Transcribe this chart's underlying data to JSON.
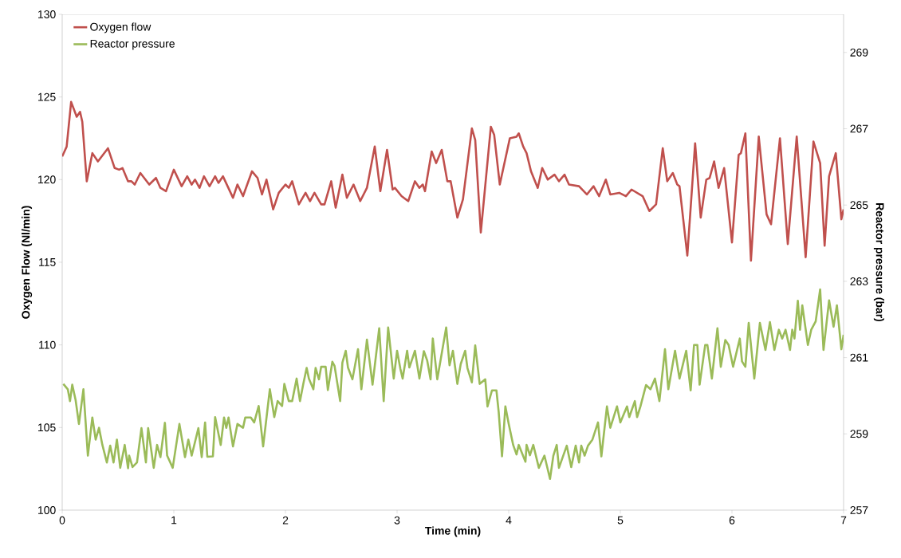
{
  "chart_data": {
    "type": "line",
    "xlabel": "Time (min)",
    "ylabel": "Oxygen Flow (Nl/min)",
    "y2label": "Reactor pressure (bar)",
    "xlim": [
      0,
      7
    ],
    "xticks": [
      0,
      1,
      2,
      3,
      4,
      5,
      6,
      7
    ],
    "ylim": [
      100,
      130
    ],
    "yticks": [
      100,
      105,
      110,
      115,
      120,
      125,
      130
    ],
    "y2lim": [
      257,
      270
    ],
    "y2ticks": [
      257,
      259,
      261,
      263,
      265,
      267,
      269
    ],
    "legend": "top left",
    "grid": false,
    "marker": "none",
    "line_style": "solid",
    "series": [
      {
        "name": "Oxygen flow",
        "color": "#c0504d",
        "x": [
          0,
          0.04,
          0.08,
          0.13,
          0.16,
          0.18,
          0.22,
          0.27,
          0.32,
          0.41,
          0.47,
          0.51,
          0.54,
          0.59,
          0.62,
          0.65,
          0.7,
          0.78,
          0.84,
          0.88,
          0.93,
          1.0,
          1.07,
          1.12,
          1.16,
          1.19,
          1.23,
          1.27,
          1.32,
          1.37,
          1.4,
          1.44,
          1.53,
          1.57,
          1.62,
          1.7,
          1.75,
          1.79,
          1.83,
          1.89,
          1.94,
          2.0,
          2.03,
          2.06,
          2.12,
          2.18,
          2.22,
          2.26,
          2.32,
          2.35,
          2.41,
          2.45,
          2.51,
          2.55,
          2.61,
          2.67,
          2.73,
          2.8,
          2.85,
          2.91,
          2.96,
          2.98,
          3.04,
          3.1,
          3.16,
          3.2,
          3.23,
          3.25,
          3.31,
          3.35,
          3.4,
          3.45,
          3.48,
          3.54,
          3.59,
          3.67,
          3.7,
          3.75,
          3.84,
          3.87,
          3.92,
          4.01,
          4.07,
          4.09,
          4.13,
          4.16,
          4.2,
          4.26,
          4.3,
          4.35,
          4.41,
          4.45,
          4.5,
          4.54,
          4.63,
          4.7,
          4.76,
          4.81,
          4.87,
          4.91,
          4.99,
          5.05,
          5.1,
          5.2,
          5.26,
          5.32,
          5.38,
          5.42,
          5.47,
          5.51,
          5.53,
          5.6,
          5.67,
          5.72,
          5.77,
          5.8,
          5.84,
          5.88,
          5.93,
          6.0,
          6.06,
          6.08,
          6.12,
          6.17,
          6.24,
          6.31,
          6.35,
          6.43,
          6.5,
          6.58,
          6.66,
          6.73,
          6.79,
          6.83,
          6.87,
          6.93,
          6.98,
          7.0
        ],
        "values": [
          121.4,
          122.0,
          124.7,
          123.8,
          124.1,
          123.5,
          119.9,
          121.6,
          121.1,
          121.9,
          120.7,
          120.6,
          120.7,
          119.9,
          119.9,
          119.7,
          120.4,
          119.7,
          120.1,
          119.5,
          119.3,
          120.6,
          119.6,
          120.2,
          119.7,
          120.0,
          119.5,
          120.2,
          119.6,
          120.2,
          119.8,
          120.2,
          118.9,
          119.7,
          119.0,
          120.5,
          120.1,
          119.1,
          120.0,
          118.2,
          119.2,
          119.7,
          119.5,
          119.9,
          118.5,
          119.2,
          118.7,
          119.2,
          118.5,
          118.5,
          119.9,
          118.3,
          120.3,
          118.9,
          119.7,
          118.7,
          119.5,
          122.0,
          119.3,
          121.8,
          119.4,
          119.5,
          119.0,
          118.7,
          119.9,
          119.5,
          119.7,
          119.3,
          121.7,
          121.0,
          121.8,
          119.9,
          119.9,
          117.7,
          118.8,
          123.1,
          122.4,
          116.8,
          123.2,
          122.7,
          119.7,
          122.5,
          122.6,
          122.8,
          122.0,
          121.6,
          120.5,
          119.5,
          120.7,
          120.0,
          120.3,
          119.9,
          120.3,
          119.7,
          119.6,
          119.1,
          119.6,
          119.0,
          120.0,
          119.1,
          119.2,
          119.0,
          119.4,
          119.0,
          118.1,
          118.5,
          121.9,
          119.9,
          120.4,
          119.7,
          119.6,
          115.4,
          122.2,
          117.7,
          120.0,
          120.1,
          121.1,
          119.5,
          120.7,
          116.2,
          121.5,
          121.6,
          122.8,
          115.1,
          122.6,
          117.9,
          117.3,
          122.5,
          116.1,
          122.6,
          115.3,
          122.3,
          121.0,
          116.0,
          120.2,
          121.6,
          117.6,
          118.2
        ]
      },
      {
        "name": "Reactor pressure",
        "color": "#9bbb59",
        "axis": "y2",
        "x": [
          0.01,
          0.05,
          0.07,
          0.09,
          0.12,
          0.15,
          0.19,
          0.23,
          0.27,
          0.3,
          0.33,
          0.36,
          0.4,
          0.43,
          0.46,
          0.49,
          0.52,
          0.56,
          0.59,
          0.6,
          0.63,
          0.67,
          0.71,
          0.75,
          0.77,
          0.82,
          0.85,
          0.88,
          0.92,
          0.94,
          0.99,
          1.05,
          1.1,
          1.13,
          1.16,
          1.22,
          1.25,
          1.28,
          1.3,
          1.35,
          1.37,
          1.42,
          1.45,
          1.47,
          1.49,
          1.53,
          1.57,
          1.62,
          1.64,
          1.69,
          1.72,
          1.76,
          1.8,
          1.86,
          1.9,
          1.93,
          1.97,
          1.99,
          2.03,
          2.06,
          2.1,
          2.13,
          2.16,
          2.19,
          2.21,
          2.25,
          2.27,
          2.3,
          2.32,
          2.36,
          2.38,
          2.42,
          2.44,
          2.49,
          2.51,
          2.54,
          2.56,
          2.6,
          2.65,
          2.68,
          2.73,
          2.78,
          2.84,
          2.88,
          2.92,
          2.97,
          3.0,
          3.03,
          3.05,
          3.09,
          3.11,
          3.16,
          3.2,
          3.24,
          3.27,
          3.3,
          3.32,
          3.36,
          3.44,
          3.47,
          3.5,
          3.54,
          3.57,
          3.61,
          3.63,
          3.67,
          3.7,
          3.74,
          3.79,
          3.81,
          3.85,
          3.89,
          3.91,
          3.94,
          3.97,
          4.0,
          4.04,
          4.07,
          4.09,
          4.15,
          4.16,
          4.19,
          4.22,
          4.27,
          4.32,
          4.37,
          4.4,
          4.43,
          4.45,
          4.52,
          4.56,
          4.6,
          4.63,
          4.65,
          4.68,
          4.71,
          4.75,
          4.8,
          4.83,
          4.88,
          4.91,
          4.97,
          5.0,
          5.06,
          5.08,
          5.13,
          5.15,
          5.18,
          5.23,
          5.27,
          5.31,
          5.35,
          5.4,
          5.43,
          5.49,
          5.53,
          5.59,
          5.63,
          5.66,
          5.69,
          5.71,
          5.76,
          5.78,
          5.82,
          5.87,
          5.9,
          5.94,
          5.97,
          6.01,
          6.07,
          6.09,
          6.12,
          6.15,
          6.2,
          6.25,
          6.3,
          6.34,
          6.38,
          6.42,
          6.45,
          6.48,
          6.52,
          6.54,
          6.56,
          6.59,
          6.61,
          6.63,
          6.68,
          6.71,
          6.75,
          6.79,
          6.82,
          6.87,
          6.91,
          6.94,
          6.98,
          7.0
        ],
        "values": [
          260.31,
          260.17,
          259.86,
          260.29,
          259.89,
          259.26,
          260.17,
          258.43,
          259.43,
          258.85,
          259.16,
          258.71,
          258.25,
          258.69,
          258.25,
          258.85,
          258.11,
          258.71,
          258.1,
          258.43,
          258.13,
          258.25,
          259.15,
          258.25,
          259.15,
          258.11,
          258.71,
          258.39,
          259.29,
          258.43,
          258.11,
          259.26,
          258.39,
          258.85,
          258.43,
          259.15,
          258.39,
          259.3,
          258.4,
          258.41,
          259.44,
          258.71,
          259.43,
          259.16,
          259.43,
          258.67,
          259.26,
          259.16,
          259.43,
          259.43,
          259.3,
          259.73,
          258.67,
          260.17,
          259.44,
          259.86,
          259.73,
          260.31,
          259.86,
          259.86,
          260.45,
          259.86,
          260.31,
          260.73,
          260.45,
          260.17,
          260.73,
          260.43,
          260.76,
          260.76,
          260.15,
          260.89,
          260.78,
          259.86,
          260.87,
          261.18,
          260.74,
          260.43,
          261.22,
          260.17,
          261.47,
          260.29,
          261.77,
          259.86,
          261.79,
          260.45,
          261.18,
          260.7,
          260.45,
          261.18,
          260.74,
          261.18,
          260.45,
          261.17,
          260.92,
          260.43,
          261.5,
          260.43,
          261.79,
          260.8,
          261.18,
          260.31,
          260.83,
          261.18,
          260.73,
          260.35,
          261.32,
          260.31,
          260.43,
          259.72,
          260.14,
          260.14,
          259.58,
          258.41,
          259.72,
          259.26,
          258.71,
          258.46,
          258.71,
          258.27,
          258.71,
          258.44,
          258.71,
          258.11,
          258.43,
          257.82,
          258.43,
          258.71,
          258.11,
          258.69,
          258.13,
          258.69,
          258.25,
          258.69,
          258.43,
          258.69,
          258.85,
          259.3,
          258.41,
          259.72,
          259.16,
          259.72,
          259.3,
          259.72,
          259.44,
          259.86,
          259.44,
          259.72,
          260.28,
          260.17,
          260.45,
          259.86,
          261.22,
          260.17,
          261.18,
          260.45,
          261.18,
          260.14,
          261.33,
          261.33,
          260.29,
          261.33,
          261.33,
          260.45,
          261.77,
          260.76,
          261.46,
          261.33,
          260.76,
          261.5,
          260.9,
          260.76,
          261.91,
          260.45,
          261.91,
          261.2,
          261.93,
          261.2,
          261.73,
          261.5,
          261.73,
          261.2,
          261.73,
          261.5,
          262.49,
          261.73,
          262.37,
          261.33,
          261.73,
          261.95,
          262.79,
          261.2,
          262.5,
          261.81,
          262.37,
          261.22,
          261.6
        ]
      }
    ]
  }
}
